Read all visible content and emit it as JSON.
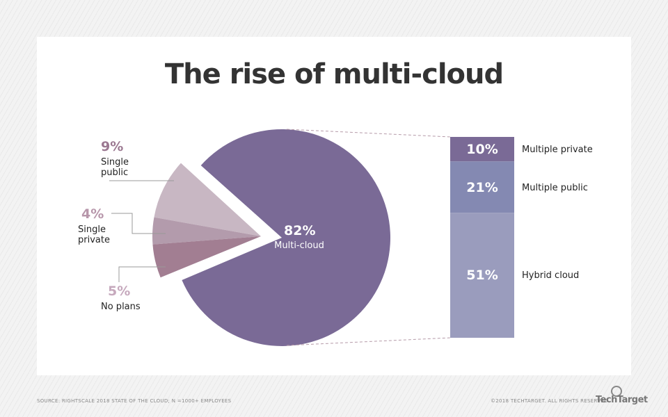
{
  "title": "The rise of multi-cloud",
  "chart_data": {
    "type": "pie",
    "title": "The rise of multi-cloud",
    "slices": [
      {
        "label": "Multi-cloud",
        "value": 82,
        "display": "82%",
        "color": "#7a6a96"
      },
      {
        "label": "Single public",
        "value": 9,
        "display": "9%",
        "color": "#c8b7c3",
        "label_color": "#9b7891"
      },
      {
        "label": "Single private",
        "value": 4,
        "display": "4%",
        "color": "#b39bac",
        "label_color": "#b796aa"
      },
      {
        "label": "No plans",
        "value": 5,
        "display": "5%",
        "color": "#a27e92",
        "label_color": "#c6a9bd"
      }
    ],
    "breakdown": {
      "type": "stacked-bar",
      "of": "Multi-cloud",
      "segments": [
        {
          "label": "Multiple private",
          "value": 10,
          "display": "10%",
          "color": "#7a6a96"
        },
        {
          "label": "Multiple public",
          "value": 21,
          "display": "21%",
          "color": "#8489b2"
        },
        {
          "label": "Hybrid cloud",
          "value": 51,
          "display": "51%",
          "color": "#9a9cbd"
        }
      ]
    }
  },
  "labels": {
    "single_public": [
      "Single",
      "public"
    ],
    "single_private": [
      "Single",
      "private"
    ],
    "no_plans": "No plans"
  },
  "footer": {
    "source": "SOURCE: RIGHTSCALE 2018 STATE OF THE CLOUD; N =1000+ EMPLOYEES",
    "copyright": "©2018 TECHTARGET. ALL RIGHTS RESERVED",
    "logo": "TechTarget"
  }
}
